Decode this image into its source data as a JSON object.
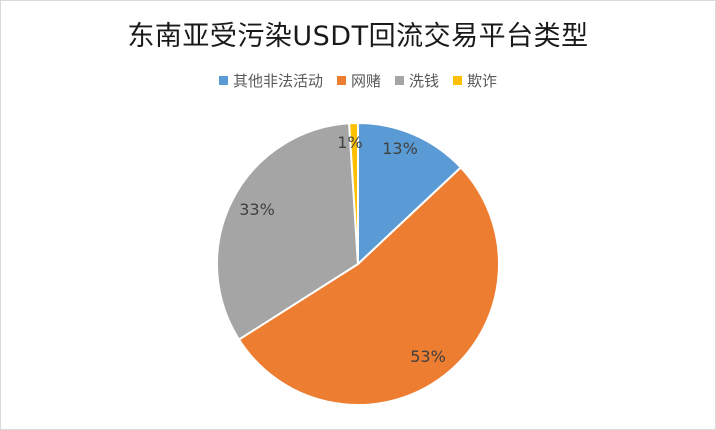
{
  "chart_data": {
    "type": "pie",
    "title": "东南亚受污染USDT回流交易平台类型",
    "legend_position": "top",
    "categories": [
      "其他非法活动",
      "网赌",
      "洗钱",
      "欺诈"
    ],
    "values": [
      13,
      53,
      33,
      1
    ],
    "labels": [
      "13%",
      "53%",
      "33%",
      "1%"
    ],
    "colors": [
      "#5b9bd5",
      "#ed7d31",
      "#a5a5a5",
      "#ffc000"
    ]
  }
}
